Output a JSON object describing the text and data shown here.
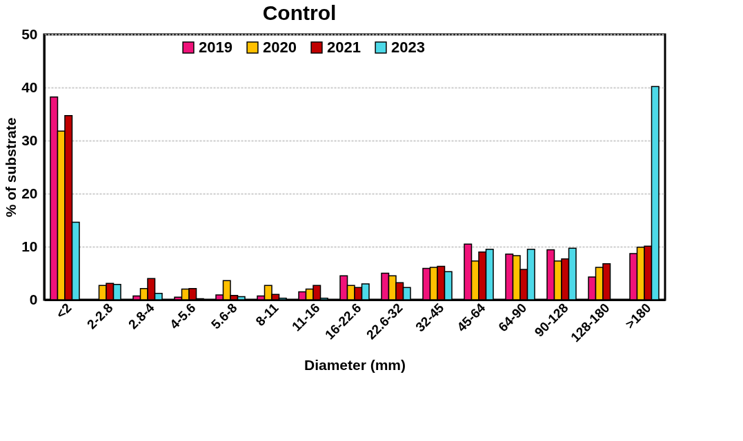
{
  "chart_data": {
    "type": "bar",
    "title": "Control",
    "xlabel": "Diameter (mm)",
    "ylabel": "% of substrate",
    "categories": [
      "<2",
      "2-2.8",
      "2.8-4",
      "4-5.6",
      "5.6-8",
      "8-11",
      "11-16",
      "16-22.6",
      "22.6-32",
      "32-45",
      "45-64",
      "64-90",
      "90-128",
      "128-180",
      ">180"
    ],
    "series": [
      {
        "name": "2019",
        "color": "#f0127a",
        "values": [
          38.2,
          null,
          0.7,
          0.5,
          0.9,
          0.7,
          1.5,
          4.5,
          5.0,
          5.9,
          10.5,
          8.6,
          9.4,
          4.3,
          8.7
        ]
      },
      {
        "name": "2020",
        "color": "#ffc000",
        "values": [
          31.8,
          2.7,
          2.1,
          2.0,
          3.6,
          2.7,
          2.0,
          2.7,
          4.5,
          6.1,
          7.3,
          8.3,
          7.3,
          6.1,
          9.9
        ]
      },
      {
        "name": "2021",
        "color": "#c00000",
        "values": [
          34.7,
          3.1,
          4.0,
          2.1,
          0.8,
          1.0,
          2.7,
          2.3,
          3.2,
          6.3,
          9.0,
          5.7,
          7.7,
          6.8,
          10.1
        ]
      },
      {
        "name": "2023",
        "color": "#4dd9e8",
        "values": [
          14.6,
          2.9,
          1.2,
          0.2,
          0.6,
          0.3,
          0.3,
          3.0,
          2.3,
          5.3,
          9.5,
          9.5,
          9.7,
          null,
          40.2
        ]
      }
    ],
    "ylim": [
      0,
      50
    ],
    "yticks": [
      0,
      10,
      20,
      30,
      40,
      50
    ],
    "grid": "y",
    "legend": "top"
  }
}
